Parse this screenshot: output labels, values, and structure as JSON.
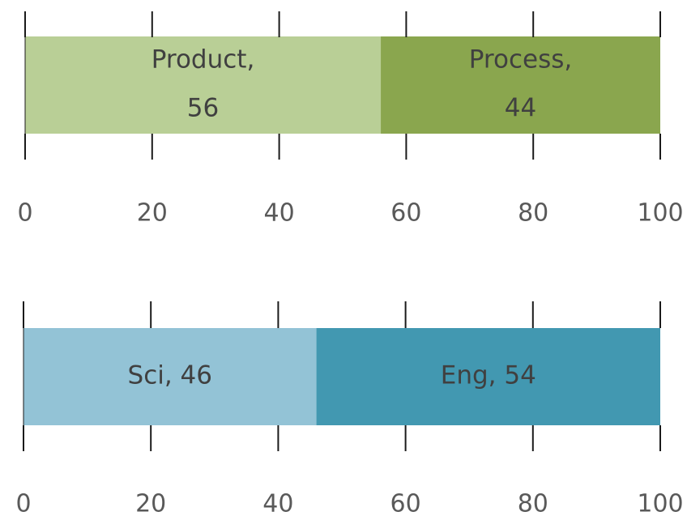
{
  "chart_data": [
    {
      "type": "bar",
      "orientation": "horizontal-stacked",
      "xlim": [
        0,
        100
      ],
      "ticks": [
        0,
        20,
        40,
        60,
        80,
        100
      ],
      "tick_labels": [
        "0",
        "20",
        "40",
        "60",
        "80",
        "100"
      ],
      "series": [
        {
          "label_lines": [
            "Product,",
            "56"
          ],
          "value": 56,
          "color": "#b9cf96"
        },
        {
          "label_lines": [
            "Process,",
            "44"
          ],
          "value": 44,
          "color": "#8aa64e"
        }
      ]
    },
    {
      "type": "bar",
      "orientation": "horizontal-stacked",
      "xlim": [
        0,
        100
      ],
      "ticks": [
        0,
        20,
        40,
        60,
        80,
        100
      ],
      "tick_labels": [
        "0",
        "20",
        "40",
        "60",
        "80",
        "100"
      ],
      "series": [
        {
          "label_lines": [
            "Sci, 46"
          ],
          "value": 46,
          "color": "#93c3d6"
        },
        {
          "label_lines": [
            "Eng, 54"
          ],
          "value": 54,
          "color": "#4298b1"
        }
      ]
    }
  ]
}
